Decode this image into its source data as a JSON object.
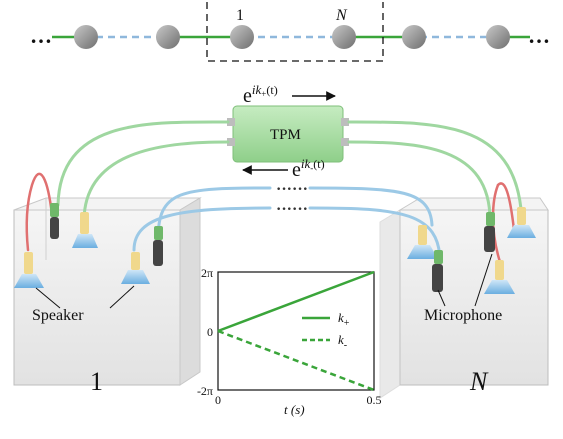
{
  "chain": {
    "left_ellipsis": "…",
    "right_ellipsis": "…",
    "cell_first_label": "1",
    "cell_last_label": "N"
  },
  "tpm": {
    "label": "TPM",
    "forward_phase_base": "e",
    "forward_phase_exp_pre": "ik",
    "forward_phase_sub": "+",
    "forward_phase_exp_post": "(t)",
    "backward_phase_base": "e",
    "backward_phase_exp_pre": "ik",
    "backward_phase_sub": "-",
    "backward_phase_exp_post": "(t)",
    "gap_dots_top": "······",
    "gap_dots_bottom": "······"
  },
  "boxes": {
    "left_label": "1",
    "right_label": "N",
    "speaker_label": "Speaker",
    "microphone_label": "Microphone"
  },
  "chart_data": {
    "type": "line",
    "title": "",
    "xlabel": "t (s)",
    "ylabel": "",
    "x_ticks": [
      "0",
      "0.5"
    ],
    "y_ticks": [
      "2π",
      "0",
      "-2π"
    ],
    "xlim": [
      0,
      0.5
    ],
    "ylim": [
      -6.2832,
      6.2832
    ],
    "legend_position": "right",
    "series": [
      {
        "name": "k+",
        "style": "solid",
        "color": "#3aa53a",
        "x": [
          0,
          0.5
        ],
        "y": [
          0,
          6.2832
        ]
      },
      {
        "name": "k-",
        "style": "dashed",
        "color": "#3aa53a",
        "x": [
          0,
          0.5
        ],
        "y": [
          0,
          -6.2832
        ]
      }
    ]
  },
  "colors": {
    "green_line": "#3aa53a",
    "blue_line": "#8fb8dc",
    "node_gray": "#8a8a8a",
    "cable_green": "#9fd7a0",
    "cable_blue": "#9cc9e6",
    "cable_red": "#e07070",
    "tpm_body": "#a8dca4"
  }
}
